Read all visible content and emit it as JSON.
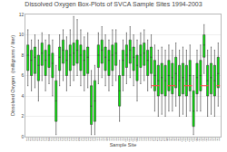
{
  "chart_data": {
    "type": "box",
    "title": "Dissolved Oxygen Box-Plots of SVCA Sample Sites 1994-2003",
    "xlabel": "Sample Site",
    "ylabel": "Dissolved Oxygen  (milligrams / liter)",
    "categories": [
      "Ber-1\n1994",
      "Ber-1\n1995",
      "Ber-2\n1994",
      "Ber-2\n1995",
      "Bla-1\n1994",
      "Bla-1\n1995",
      "Bla-2\n1994",
      "Bla-2\n1995",
      "Bla-3\n1994",
      "Bla-3\n1995",
      "Bla-4\n1994",
      "Bla-4\n1995",
      "Bla-5\n1994",
      "Bla-5\n1995",
      "Bla-5\n1996",
      "Bla-5\n1997",
      "Bla-5\n1998",
      "Bla-5\n1999",
      "Bla-6\n1994",
      "Bla-6\n1995",
      "Cal-1\n1994",
      "Cal-1\n1995",
      "Cal-2\n1994",
      "Cal-2\n1995",
      "Cal-3\n1994",
      "Cal-3\n1995",
      "Cal-4\n1994",
      "Cal-4\n1995",
      "Dan-1\n1994",
      "Dan-1\n1995",
      "Dan-2\n1994",
      "Dan-2\n1995",
      "Fla-1\n1994",
      "Fla-1\n1995",
      "Fla-2\n1994",
      "Fla-2\n1995",
      "Her-1\n1994",
      "Her-1\n1995",
      "Her-2\n1994",
      "Her-2\n1995",
      "Lak-1\n1994",
      "Lak-1\n1995",
      "Lak-2\n1994",
      "Lak-2\n1995",
      "Mud-1\n1994",
      "Mud-1\n1995",
      "Mud-2\n1994",
      "Mud-2\n1995",
      "Oak-1\n1994",
      "Oak-1\n1995",
      "Oak-2\n1994",
      "Oak-2\n1995",
      "Sal-1\n1994",
      "Sal-1\n1995",
      "Wil-1\n1994"
    ],
    "median": [
      8.0,
      7.5,
      7.8,
      7.0,
      8.2,
      7.5,
      8.0,
      7.2,
      3.5,
      7.8,
      8.5,
      7.5,
      8.0,
      8.2,
      8.5,
      8.0,
      7.5,
      7.8,
      3.0,
      3.5,
      8.0,
      8.5,
      7.8,
      7.5,
      8.0,
      8.2,
      4.5,
      7.5,
      8.0,
      8.5,
      7.8,
      7.0,
      8.0,
      8.2,
      7.5,
      7.8,
      6.0,
      5.5,
      5.8,
      5.5,
      6.0,
      5.8,
      6.2,
      5.5,
      5.8,
      5.5,
      6.0,
      2.5,
      5.8,
      6.0,
      9.0,
      5.5,
      5.8,
      5.5,
      6.2
    ],
    "q1": [
      6.5,
      6.0,
      6.2,
      5.5,
      7.0,
      6.0,
      6.8,
      5.8,
      1.5,
      6.5,
      7.2,
      6.0,
      6.5,
      7.0,
      7.2,
      6.5,
      6.0,
      6.2,
      1.2,
      1.5,
      6.8,
      7.2,
      6.5,
      6.0,
      6.5,
      7.0,
      3.0,
      6.0,
      6.8,
      7.2,
      6.5,
      5.5,
      6.8,
      7.0,
      6.0,
      6.2,
      4.5,
      4.0,
      4.2,
      4.0,
      4.5,
      4.2,
      4.8,
      4.0,
      4.2,
      4.0,
      4.5,
      1.0,
      4.2,
      4.5,
      7.8,
      4.0,
      4.2,
      4.0,
      4.8
    ],
    "q3": [
      9.0,
      8.5,
      8.8,
      8.0,
      9.2,
      8.5,
      9.0,
      8.2,
      5.5,
      8.8,
      9.5,
      8.5,
      9.0,
      9.2,
      9.5,
      9.0,
      8.5,
      8.8,
      5.0,
      5.5,
      9.0,
      9.5,
      8.8,
      8.5,
      9.0,
      9.2,
      6.0,
      8.5,
      9.0,
      9.5,
      8.8,
      8.0,
      9.0,
      9.2,
      8.5,
      8.8,
      7.5,
      7.0,
      7.2,
      7.0,
      7.5,
      7.2,
      7.8,
      7.0,
      7.2,
      7.0,
      7.5,
      4.5,
      7.2,
      7.5,
      10.0,
      7.0,
      7.2,
      7.0,
      7.8
    ],
    "whisker_low": [
      5.0,
      4.5,
      4.8,
      3.5,
      5.5,
      4.5,
      5.2,
      4.0,
      0.2,
      5.0,
      5.5,
      4.5,
      5.0,
      5.5,
      6.0,
      5.0,
      4.5,
      4.8,
      0.2,
      0.2,
      5.2,
      5.8,
      5.0,
      4.5,
      5.0,
      5.5,
      1.5,
      4.5,
      5.2,
      5.8,
      5.0,
      3.5,
      5.2,
      5.5,
      4.5,
      4.8,
      2.5,
      2.0,
      2.2,
      2.0,
      2.5,
      2.5,
      3.0,
      2.0,
      2.2,
      2.0,
      2.5,
      0.2,
      2.5,
      2.5,
      6.2,
      2.0,
      2.2,
      2.0,
      3.0
    ],
    "whisker_high": [
      10.5,
      9.5,
      10.0,
      9.5,
      10.2,
      9.5,
      10.0,
      9.5,
      7.0,
      10.0,
      10.5,
      9.8,
      10.5,
      11.8,
      11.5,
      10.5,
      9.8,
      10.2,
      6.5,
      7.0,
      10.2,
      10.8,
      10.0,
      9.5,
      10.5,
      10.5,
      7.5,
      9.5,
      10.2,
      10.8,
      10.0,
      9.5,
      10.2,
      10.5,
      9.5,
      10.0,
      9.0,
      8.5,
      8.8,
      8.5,
      9.0,
      8.5,
      9.2,
      8.5,
      8.8,
      8.5,
      9.0,
      6.0,
      8.5,
      9.0,
      11.0,
      8.5,
      8.8,
      8.5,
      9.2
    ],
    "color": "#00ee00",
    "ylim": [
      0,
      12
    ],
    "yticks": [
      0,
      2,
      4,
      6,
      8,
      10,
      12
    ],
    "grid": true,
    "reference_line": {
      "y": 5.0,
      "from_category": "Fla-2\n1995",
      "color": "#ff4444",
      "line_style": "dashed"
    }
  }
}
